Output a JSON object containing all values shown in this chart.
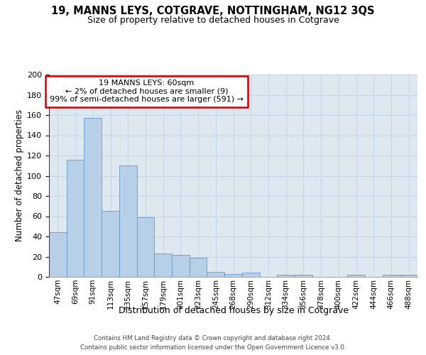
{
  "title1": "19, MANNS LEYS, COTGRAVE, NOTTINGHAM, NG12 3QS",
  "title2": "Size of property relative to detached houses in Cotgrave",
  "xlabel": "Distribution of detached houses by size in Cotgrave",
  "ylabel": "Number of detached properties",
  "footer1": "Contains HM Land Registry data © Crown copyright and database right 2024.",
  "footer2": "Contains public sector information licensed under the Open Government Licence v3.0.",
  "categories": [
    "47sqm",
    "69sqm",
    "91sqm",
    "113sqm",
    "135sqm",
    "157sqm",
    "179sqm",
    "201sqm",
    "223sqm",
    "245sqm",
    "268sqm",
    "290sqm",
    "312sqm",
    "334sqm",
    "356sqm",
    "378sqm",
    "400sqm",
    "422sqm",
    "444sqm",
    "466sqm",
    "488sqm"
  ],
  "values": [
    44,
    116,
    157,
    65,
    110,
    59,
    23,
    22,
    19,
    5,
    3,
    4,
    0,
    2,
    2,
    0,
    0,
    2,
    0,
    2,
    2
  ],
  "bar_color": "#b8cfe8",
  "bar_edge_color": "#6699cc",
  "grid_color": "#c5d5e8",
  "bg_color": "#dde8f0",
  "highlight_line_color": "#cc0000",
  "annotation_line1": "19 MANNS LEYS: 60sqm",
  "annotation_line2": "← 2% of detached houses are smaller (9)",
  "annotation_line3": "99% of semi-detached houses are larger (591) →",
  "annotation_box_edge_color": "#cc0000",
  "ylim_max": 200,
  "yticks": [
    0,
    20,
    40,
    60,
    80,
    100,
    120,
    140,
    160,
    180,
    200
  ],
  "title1_fontsize": 10.5,
  "title2_fontsize": 9,
  "ylabel_fontsize": 8.5,
  "xlabel_fontsize": 9,
  "ytick_fontsize": 8,
  "xtick_fontsize": 7.5,
  "footer_fontsize": 6.2,
  "annot_fontsize": 8
}
